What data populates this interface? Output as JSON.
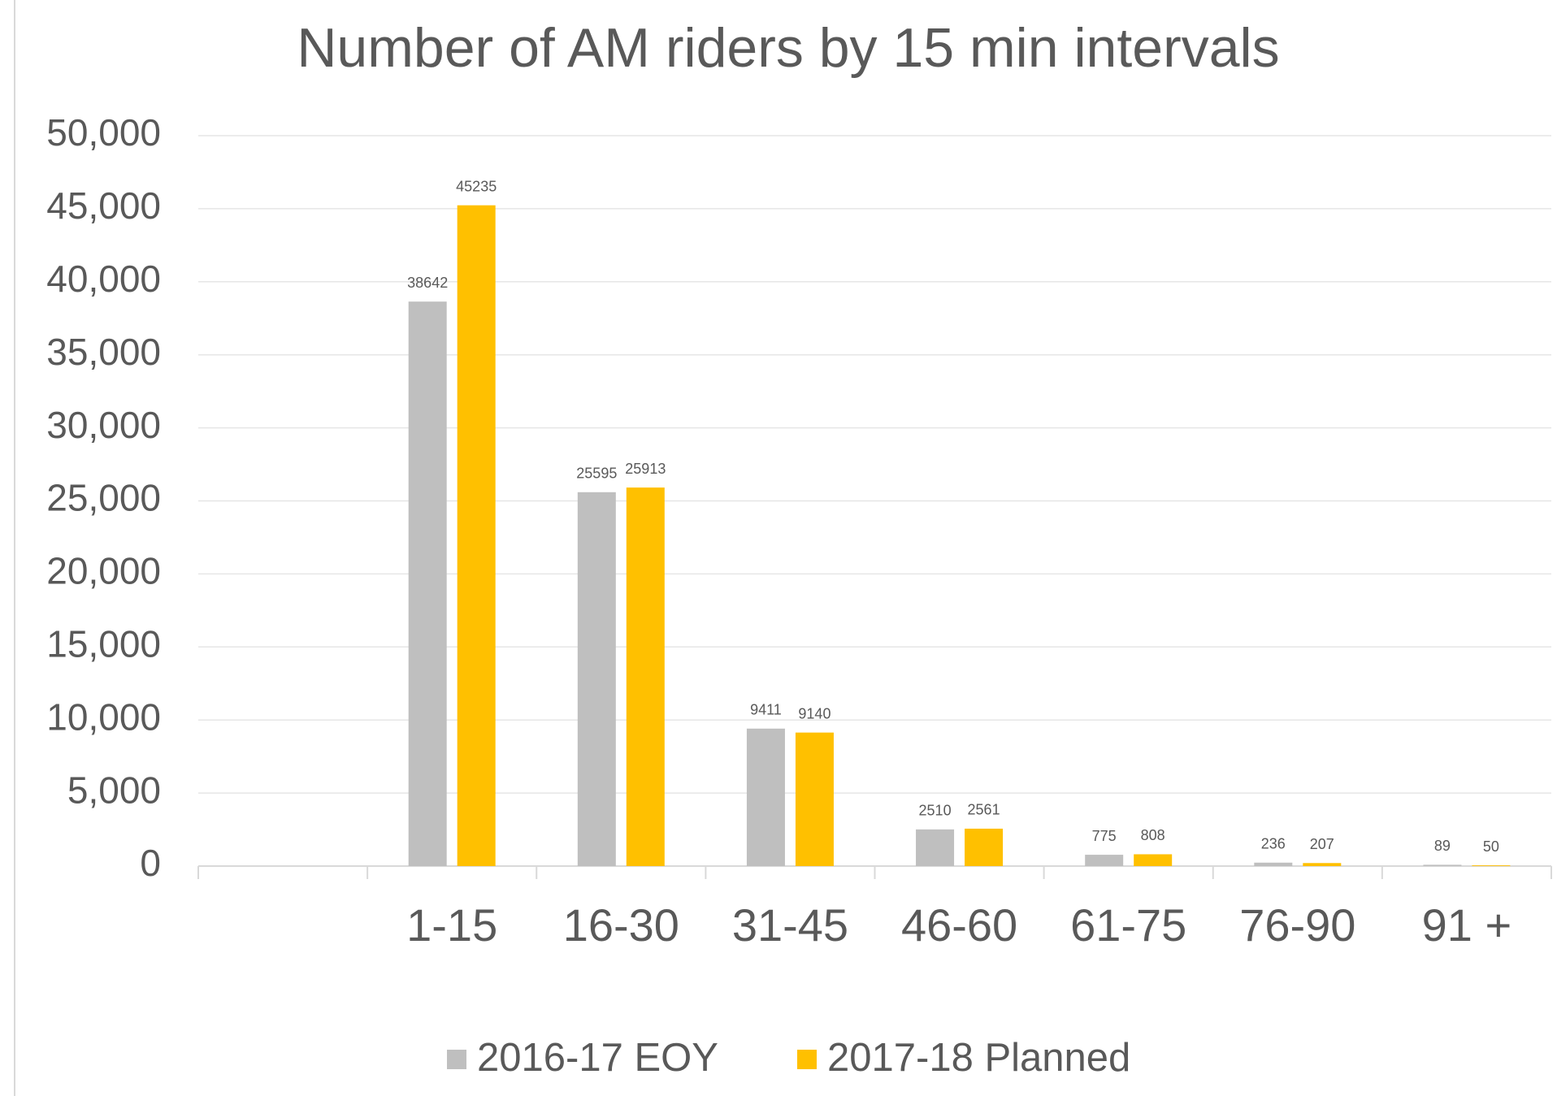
{
  "chart_data": {
    "type": "bar",
    "title": "Number of AM riders by 15 min intervals",
    "categories": [
      null,
      "1-15",
      "16-30",
      "31-45",
      "46-60",
      "61-75",
      "76-90",
      "91 +"
    ],
    "series": [
      {
        "name": "2016-17 EOY",
        "color": "#bfbfbf",
        "values": [
          null,
          38642,
          25595,
          9411,
          2510,
          775,
          236,
          89
        ]
      },
      {
        "name": "2017-18 Planned",
        "color": "#ffc000",
        "values": [
          null,
          45235,
          25913,
          9140,
          2561,
          808,
          207,
          50
        ]
      }
    ],
    "ylim": [
      0,
      50000
    ],
    "yticks": [
      0,
      {
        "value": 5000,
        "label": "5,000"
      },
      {
        "value": 10000,
        "label": "10,000"
      },
      {
        "value": 15000,
        "label": "15,000"
      },
      {
        "value": 20000,
        "label": "20,000"
      },
      {
        "value": 25000,
        "label": "25,000"
      },
      {
        "value": 30000,
        "label": "30,000"
      },
      {
        "value": 35000,
        "label": "35,000"
      },
      {
        "value": 40000,
        "label": "40,000"
      },
      {
        "value": 45000,
        "label": "45,000"
      },
      {
        "value": 50000,
        "label": "50,000"
      }
    ],
    "grid": true,
    "legend": "bottom"
  }
}
